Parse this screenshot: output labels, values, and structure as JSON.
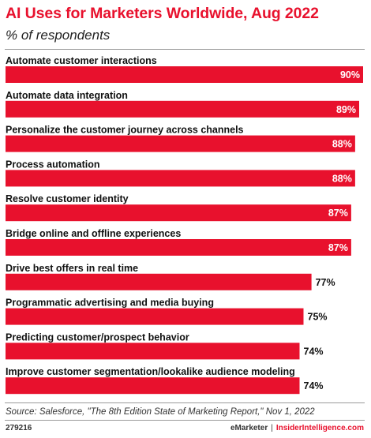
{
  "chart_data": {
    "type": "bar",
    "orientation": "horizontal",
    "title": "AI Uses for Marketers Worldwide, Aug 2022",
    "subtitle": "% of respondents",
    "categories": [
      "Automate customer interactions",
      "Automate data integration",
      "Personalize the customer journey across channels",
      "Process automation",
      "Resolve customer identity",
      "Bridge online and offline experiences",
      "Drive best offers in real time",
      "Programmatic advertising and media buying",
      "Predicting customer/prospect behavior",
      "Improve customer segmentation/lookalike audience modeling"
    ],
    "values": [
      90,
      89,
      88,
      88,
      87,
      87,
      77,
      75,
      74,
      74
    ],
    "value_labels": [
      "90%",
      "89%",
      "88%",
      "88%",
      "87%",
      "87%",
      "77%",
      "75%",
      "74%",
      "74%"
    ],
    "bar_color": "#e8112d",
    "grid": false,
    "legend": "none"
  },
  "source": "Source: Salesforce, \"The 8th Edition State of Marketing Report,\" Nov 1, 2022",
  "footer": {
    "chart_id": "279216",
    "brand": "eMarketer",
    "separator": "|",
    "brand2": "InsiderIntelligence.com"
  }
}
